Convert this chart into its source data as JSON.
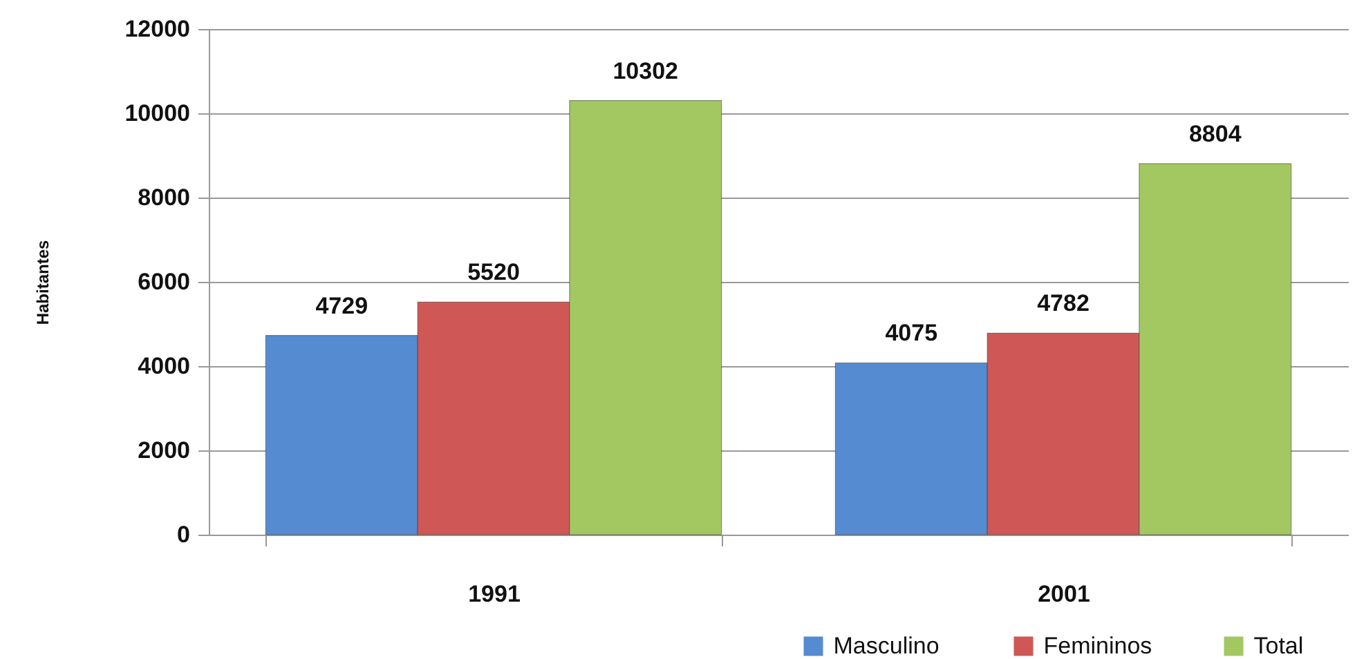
{
  "chart_data": {
    "type": "bar",
    "ylabel": "Habitantes",
    "categories": [
      "1991",
      "2001"
    ],
    "series": [
      {
        "name": "Masculino",
        "color": "#558bd0",
        "values": [
          4729,
          4075
        ]
      },
      {
        "name": "Femininos",
        "color": "#cf5856",
        "values": [
          5520,
          4782
        ]
      },
      {
        "name": "Total",
        "color": "#a3c862",
        "values": [
          10302,
          8804
        ]
      }
    ],
    "ylim": [
      0,
      12000
    ],
    "yticks": [
      0,
      2000,
      4000,
      6000,
      8000,
      10000,
      12000
    ],
    "grid": "y",
    "legend": "bottom right",
    "data_labels": true
  }
}
